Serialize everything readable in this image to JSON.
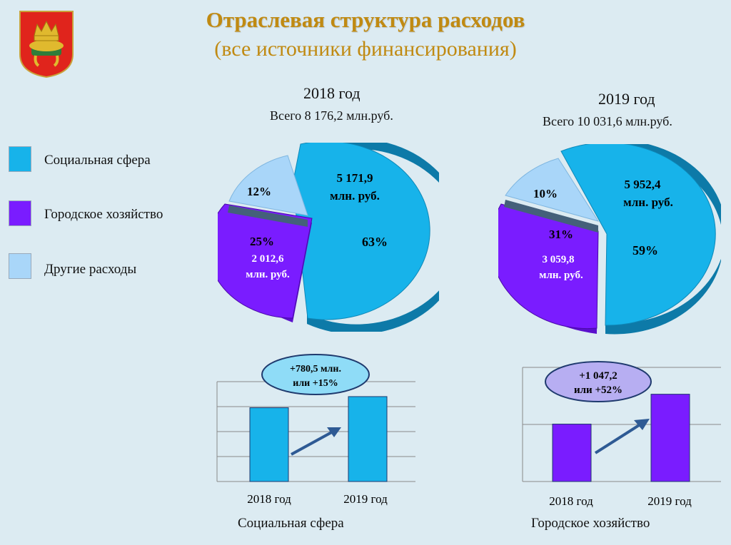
{
  "header": {
    "title": "Отраслевая структура расходов",
    "subtitle": "(все источники финансирования)"
  },
  "legend": [
    {
      "label": "Социальная сфера",
      "color": "#17b3ea"
    },
    {
      "label": "Городское хозяйство",
      "color": "#7a1cff"
    },
    {
      "label": "Другие расходы",
      "color": "#a9d6f9"
    }
  ],
  "pie_2018": {
    "year": "2018 год",
    "total": "Всего 8 176,2 млн.руб.",
    "labels": {
      "social_value": "5 171,9",
      "social_unit": "млн. руб.",
      "social_pct": "63%",
      "city_pct": "25%",
      "city_value": "2 012,6",
      "city_unit": "млн. руб.",
      "other_pct": "12%"
    }
  },
  "pie_2019": {
    "year": "2019 год",
    "total": "Всего  10 031,6 млн.руб.",
    "labels": {
      "social_value": "5 952,4",
      "social_unit": "млн. руб.",
      "social_pct": "59%",
      "city_pct": "31%",
      "city_value": "3 059,8",
      "city_unit": "млн. руб.",
      "other_pct": "10%"
    }
  },
  "bar_social": {
    "title": "Социальная сфера",
    "callout_line1": "+780,5 млн.",
    "callout_line2": "или +15%",
    "categories": [
      "2018 год",
      "2019 год"
    ]
  },
  "bar_city": {
    "title": "Городское хозяйство",
    "callout_line1": "+1 047,2",
    "callout_line2": "или  +52%",
    "categories": [
      "2018 год",
      "2019 год"
    ]
  },
  "chart_data": [
    {
      "type": "pie",
      "title": "2018 год",
      "subtitle": "Всего 8 176,2 млн.руб.",
      "categories": [
        "Социальная сфера",
        "Городское хозяйство",
        "Другие расходы"
      ],
      "values": [
        5171.9,
        2012.6,
        991.7
      ],
      "percents": [
        63,
        25,
        12
      ],
      "colors": [
        "#17b3ea",
        "#7a1cff",
        "#a9d6f9"
      ]
    },
    {
      "type": "pie",
      "title": "2019 год",
      "subtitle": "Всего  10 031,6 млн.руб.",
      "categories": [
        "Социальная сфера",
        "Городское хозяйство",
        "Другие расходы"
      ],
      "values": [
        5952.4,
        3059.8,
        1019.4
      ],
      "percents": [
        59,
        31,
        10
      ],
      "colors": [
        "#17b3ea",
        "#7a1cff",
        "#a9d6f9"
      ]
    },
    {
      "type": "bar",
      "title": "Социальная сфера",
      "categories": [
        "2018 год",
        "2019 год"
      ],
      "values": [
        5171.9,
        5952.4
      ],
      "annotation": "+780,5 млн. или +15%",
      "ylim": [
        0,
        7000
      ],
      "color": "#17b3ea"
    },
    {
      "type": "bar",
      "title": "Городское хозяйство",
      "categories": [
        "2018 год",
        "2019 год"
      ],
      "values": [
        2012.6,
        3059.8
      ],
      "annotation": "+1 047,2 или  +52%",
      "ylim": [
        0,
        4000
      ],
      "color": "#7a1cff"
    }
  ]
}
